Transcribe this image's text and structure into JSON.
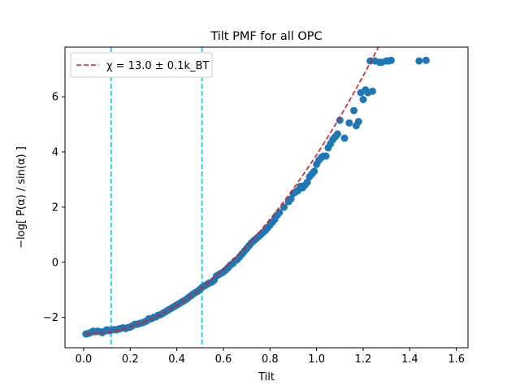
{
  "chart_data": {
    "type": "scatter",
    "title": "Tilt PMF for all OPC",
    "xlabel": "Tilt",
    "ylabel": "−log[ P(α) / sin(α) ]",
    "xlim": [
      -0.08,
      1.65
    ],
    "ylim": [
      -3.1,
      7.8
    ],
    "xticks": [
      0.0,
      0.2,
      0.4,
      0.6,
      0.8,
      1.0,
      1.2,
      1.4,
      1.6
    ],
    "xtick_labels": [
      "0.0",
      "0.2",
      "0.4",
      "0.6",
      "0.8",
      "1.0",
      "1.2",
      "1.4",
      "1.6"
    ],
    "yticks": [
      -2,
      0,
      2,
      4,
      6
    ],
    "ytick_labels": [
      "−2",
      "0",
      "2",
      "4",
      "6"
    ],
    "grid": false,
    "legend": {
      "position": "top-left",
      "entries": [
        {
          "label": "χ = 13.0 ± 0.1k_BT",
          "style": "red-dashed"
        }
      ]
    },
    "vlines": [
      0.118,
      0.508
    ],
    "fit_curve": {
      "name": "χ = 13.0 ± 0.1k_BT",
      "color": "#e41a1c",
      "x_range": [
        0.01,
        1.28
      ],
      "note_formula": "y = 6.5 * x^2 - 2.6"
    },
    "series": [
      {
        "name": "data",
        "color": "#1f77b4",
        "x": [
          0.01,
          0.02,
          0.03,
          0.04,
          0.05,
          0.06,
          0.07,
          0.08,
          0.09,
          0.1,
          0.11,
          0.12,
          0.13,
          0.14,
          0.15,
          0.16,
          0.17,
          0.18,
          0.19,
          0.2,
          0.21,
          0.22,
          0.23,
          0.24,
          0.25,
          0.26,
          0.27,
          0.28,
          0.29,
          0.3,
          0.31,
          0.32,
          0.33,
          0.34,
          0.35,
          0.36,
          0.37,
          0.38,
          0.39,
          0.4,
          0.41,
          0.42,
          0.43,
          0.44,
          0.45,
          0.46,
          0.47,
          0.48,
          0.49,
          0.5,
          0.51,
          0.52,
          0.53,
          0.54,
          0.55,
          0.56,
          0.57,
          0.58,
          0.59,
          0.6,
          0.61,
          0.62,
          0.63,
          0.64,
          0.65,
          0.66,
          0.67,
          0.68,
          0.69,
          0.7,
          0.71,
          0.72,
          0.73,
          0.74,
          0.75,
          0.76,
          0.77,
          0.78,
          0.79,
          0.8,
          0.81,
          0.82,
          0.83,
          0.84,
          0.86,
          0.88,
          0.89,
          0.9,
          0.91,
          0.92,
          0.93,
          0.94,
          0.95,
          0.96,
          0.97,
          0.98,
          0.99,
          1.0,
          1.01,
          1.02,
          1.03,
          1.04,
          1.05,
          1.06,
          1.07,
          1.08,
          1.09,
          1.1,
          1.12,
          1.14,
          1.16,
          1.17,
          1.18,
          1.19,
          1.2,
          1.21,
          1.22,
          1.23,
          1.24,
          1.25,
          1.27,
          1.28,
          1.3,
          1.31,
          1.32,
          1.44,
          1.47
        ],
        "y": [
          -2.6,
          -2.58,
          -2.55,
          -2.5,
          -2.52,
          -2.5,
          -2.52,
          -2.55,
          -2.5,
          -2.45,
          -2.48,
          -2.46,
          -2.44,
          -2.45,
          -2.42,
          -2.4,
          -2.38,
          -2.4,
          -2.37,
          -2.35,
          -2.3,
          -2.25,
          -2.25,
          -2.22,
          -2.2,
          -2.17,
          -2.13,
          -2.05,
          -2.05,
          -2.0,
          -1.98,
          -1.92,
          -1.9,
          -1.85,
          -1.8,
          -1.75,
          -1.7,
          -1.65,
          -1.6,
          -1.55,
          -1.5,
          -1.45,
          -1.4,
          -1.35,
          -1.28,
          -1.22,
          -1.15,
          -1.1,
          -1.05,
          -0.98,
          -0.9,
          -0.85,
          -0.8,
          -0.75,
          -0.72,
          -0.65,
          -0.5,
          -0.45,
          -0.4,
          -0.35,
          -0.28,
          -0.2,
          -0.1,
          -0.05,
          0.05,
          0.1,
          0.2,
          0.3,
          0.4,
          0.5,
          0.6,
          0.7,
          0.78,
          0.85,
          0.92,
          1.0,
          1.08,
          1.15,
          1.25,
          1.35,
          1.45,
          1.55,
          1.7,
          1.8,
          2.0,
          2.2,
          2.3,
          2.5,
          2.55,
          2.6,
          2.75,
          2.7,
          2.8,
          2.9,
          3.1,
          3.2,
          3.3,
          3.55,
          3.7,
          3.8,
          3.85,
          3.85,
          4.15,
          4.3,
          4.45,
          4.55,
          4.65,
          5.15,
          4.5,
          5.05,
          5.5,
          4.95,
          5.1,
          6.15,
          5.9,
          6.25,
          6.15,
          7.3,
          6.2,
          7.3,
          7.25,
          7.25,
          7.3,
          7.3,
          7.32,
          7.3,
          7.32
        ]
      }
    ]
  }
}
